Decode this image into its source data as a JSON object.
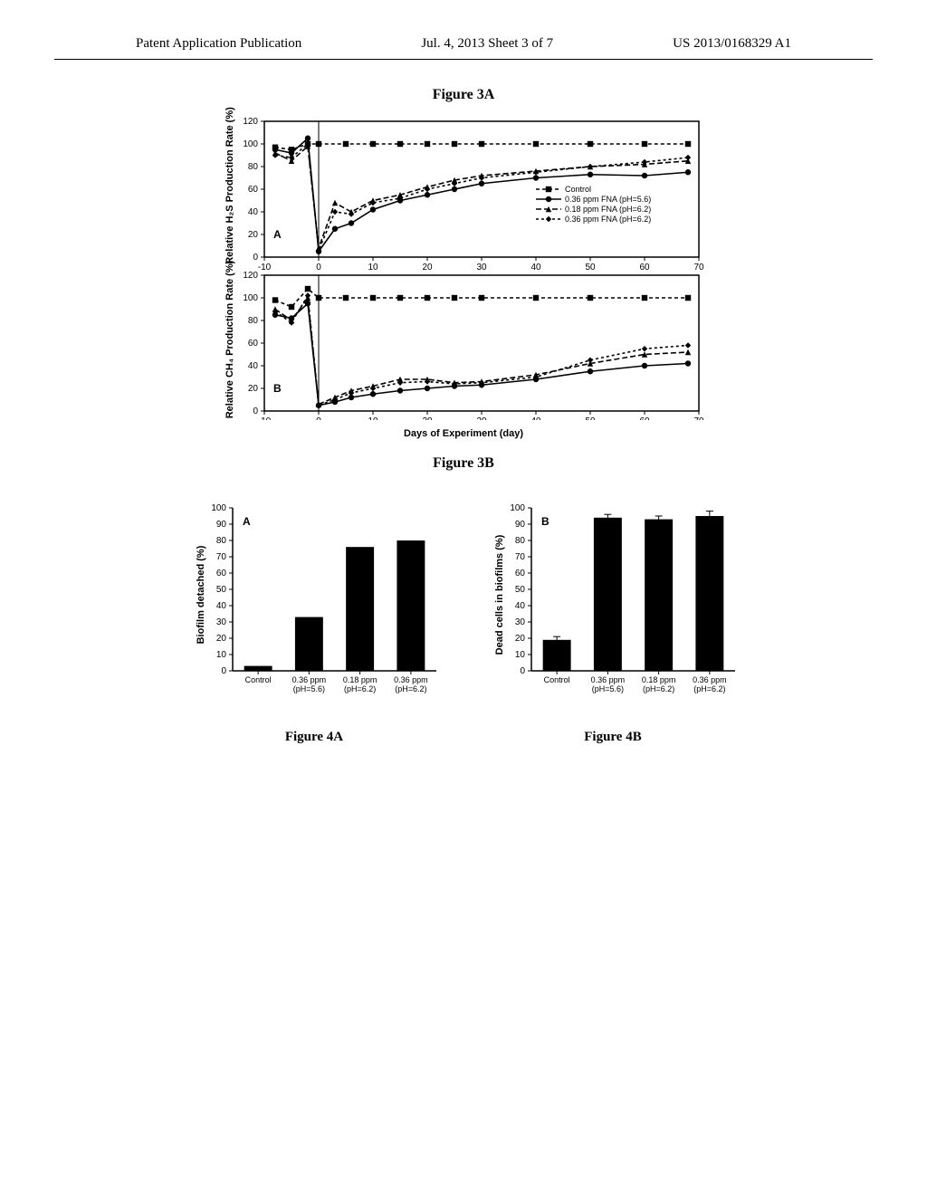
{
  "header": {
    "left": "Patent Application Publication",
    "center": "Jul. 4, 2013   Sheet 3 of 7",
    "right": "US 2013/0168329 A1"
  },
  "figure3": {
    "title_top": "Figure 3A",
    "title_bottom": "Figure 3B",
    "xaxis_label": "Days of Experiment (day)",
    "panelA": {
      "ylabel": "Relative H₂S Production Rate (%)",
      "panel_letter": "A",
      "ylim": [
        0,
        120
      ],
      "ytick_step": 20,
      "xlim": [
        -10,
        70
      ],
      "xtick_step": 10,
      "series": {
        "control": {
          "label": "Control",
          "marker": "square",
          "dash": "4,3",
          "color": "#000000",
          "points": [
            [
              -8,
              97
            ],
            [
              -5,
              95
            ],
            [
              -2,
              100
            ],
            [
              0,
              100
            ],
            [
              5,
              100
            ],
            [
              10,
              100
            ],
            [
              15,
              100
            ],
            [
              20,
              100
            ],
            [
              25,
              100
            ],
            [
              30,
              100
            ],
            [
              40,
              100
            ],
            [
              50,
              100
            ],
            [
              60,
              100
            ],
            [
              68,
              100
            ]
          ]
        },
        "fna036_56": {
          "label": "0.36 ppm FNA (pH=5.6)",
          "marker": "circle",
          "dash": "none",
          "color": "#000000",
          "points": [
            [
              -8,
              95
            ],
            [
              -5,
              92
            ],
            [
              -2,
              105
            ],
            [
              0,
              5
            ],
            [
              3,
              25
            ],
            [
              6,
              30
            ],
            [
              10,
              42
            ],
            [
              15,
              50
            ],
            [
              20,
              55
            ],
            [
              25,
              60
            ],
            [
              30,
              65
            ],
            [
              40,
              70
            ],
            [
              50,
              73
            ],
            [
              60,
              72
            ],
            [
              68,
              75
            ]
          ]
        },
        "fna018_62": {
          "label": "0.18 ppm FNA (pH=6.2)",
          "marker": "triangle",
          "dash": "6,3",
          "color": "#000000",
          "points": [
            [
              -8,
              92
            ],
            [
              -5,
              85
            ],
            [
              -2,
              98
            ],
            [
              0,
              8
            ],
            [
              3,
              48
            ],
            [
              6,
              40
            ],
            [
              10,
              50
            ],
            [
              15,
              55
            ],
            [
              20,
              62
            ],
            [
              25,
              68
            ],
            [
              30,
              72
            ],
            [
              40,
              76
            ],
            [
              50,
              80
            ],
            [
              60,
              82
            ],
            [
              68,
              85
            ]
          ]
        },
        "fna036_62": {
          "label": "0.36 ppm FNA (pH=6.2)",
          "marker": "diamond",
          "dash": "3,3",
          "color": "#000000",
          "points": [
            [
              -8,
              90
            ],
            [
              -5,
              88
            ],
            [
              -2,
              100
            ],
            [
              0,
              6
            ],
            [
              3,
              40
            ],
            [
              6,
              38
            ],
            [
              10,
              48
            ],
            [
              15,
              52
            ],
            [
              20,
              60
            ],
            [
              25,
              65
            ],
            [
              30,
              70
            ],
            [
              40,
              75
            ],
            [
              50,
              80
            ],
            [
              60,
              84
            ],
            [
              68,
              88
            ]
          ]
        }
      }
    },
    "panelB": {
      "ylabel": "Relative CH₄ Production Rate (%)",
      "panel_letter": "B",
      "ylim": [
        0,
        120
      ],
      "ytick_step": 20,
      "xlim": [
        -10,
        70
      ],
      "xtick_step": 10,
      "series": {
        "control": {
          "points": [
            [
              -8,
              98
            ],
            [
              -5,
              92
            ],
            [
              -2,
              108
            ],
            [
              0,
              100
            ],
            [
              5,
              100
            ],
            [
              10,
              100
            ],
            [
              15,
              100
            ],
            [
              20,
              100
            ],
            [
              25,
              100
            ],
            [
              30,
              100
            ],
            [
              40,
              100
            ],
            [
              50,
              100
            ],
            [
              60,
              100
            ],
            [
              68,
              100
            ]
          ],
          "marker": "square",
          "dash": "4,3",
          "color": "#000000"
        },
        "fna036_56": {
          "points": [
            [
              -8,
              85
            ],
            [
              -5,
              82
            ],
            [
              -2,
              95
            ],
            [
              0,
              5
            ],
            [
              3,
              8
            ],
            [
              6,
              12
            ],
            [
              10,
              15
            ],
            [
              15,
              18
            ],
            [
              20,
              20
            ],
            [
              25,
              22
            ],
            [
              30,
              23
            ],
            [
              40,
              28
            ],
            [
              50,
              35
            ],
            [
              60,
              40
            ],
            [
              68,
              42
            ]
          ],
          "marker": "circle",
          "dash": "none",
          "color": "#000000"
        },
        "fna018_62": {
          "points": [
            [
              -8,
              90
            ],
            [
              -5,
              80
            ],
            [
              -2,
              100
            ],
            [
              0,
              6
            ],
            [
              3,
              12
            ],
            [
              6,
              18
            ],
            [
              10,
              22
            ],
            [
              15,
              28
            ],
            [
              20,
              28
            ],
            [
              25,
              25
            ],
            [
              30,
              26
            ],
            [
              40,
              32
            ],
            [
              50,
              42
            ],
            [
              60,
              50
            ],
            [
              68,
              52
            ]
          ],
          "marker": "triangle",
          "dash": "6,3",
          "color": "#000000"
        },
        "fna036_62": {
          "points": [
            [
              -8,
              88
            ],
            [
              -5,
              78
            ],
            [
              -2,
              102
            ],
            [
              0,
              5
            ],
            [
              3,
              10
            ],
            [
              6,
              16
            ],
            [
              10,
              20
            ],
            [
              15,
              25
            ],
            [
              20,
              26
            ],
            [
              25,
              24
            ],
            [
              30,
              25
            ],
            [
              40,
              30
            ],
            [
              50,
              45
            ],
            [
              60,
              55
            ],
            [
              68,
              58
            ]
          ],
          "marker": "diamond",
          "dash": "3,3",
          "color": "#000000"
        }
      }
    },
    "legend_items": [
      {
        "label": "Control",
        "marker": "square",
        "dash": "4,3"
      },
      {
        "label": "0.36 ppm FNA (pH=5.6)",
        "marker": "circle",
        "dash": "none"
      },
      {
        "label": "0.18 ppm FNA (pH=6.2)",
        "marker": "triangle",
        "dash": "6,3"
      },
      {
        "label": "0.36 ppm FNA (pH=6.2)",
        "marker": "diamond",
        "dash": "3,3"
      }
    ]
  },
  "figure4": {
    "panelA": {
      "ylabel": "Biofilm detached (%)",
      "panel_letter": "A",
      "ylim": [
        0,
        100
      ],
      "ytick_step": 10,
      "categories": [
        "Control",
        "0.36 ppm\n(pH=5.6)",
        "0.18 ppm\n(pH=6.2)",
        "0.36 ppm\n(pH=6.2)"
      ],
      "values": [
        3,
        33,
        76,
        80
      ],
      "errors": [
        0,
        0,
        0,
        0
      ],
      "bar_color": "#000000",
      "caption": "Figure 4A"
    },
    "panelB": {
      "ylabel": "Dead cells in biofilms (%)",
      "panel_letter": "B",
      "ylim": [
        0,
        100
      ],
      "ytick_step": 10,
      "categories": [
        "Control",
        "0.36 ppm\n(pH=5.6)",
        "0.18 ppm\n(pH=6.2)",
        "0.36 ppm\n(pH=6.2)"
      ],
      "values": [
        19,
        94,
        93,
        95
      ],
      "errors": [
        2,
        2,
        2,
        3
      ],
      "bar_color": "#000000",
      "caption": "Figure 4B"
    }
  },
  "style": {
    "background": "#ffffff",
    "axis_color": "#000000",
    "grid": "off"
  }
}
